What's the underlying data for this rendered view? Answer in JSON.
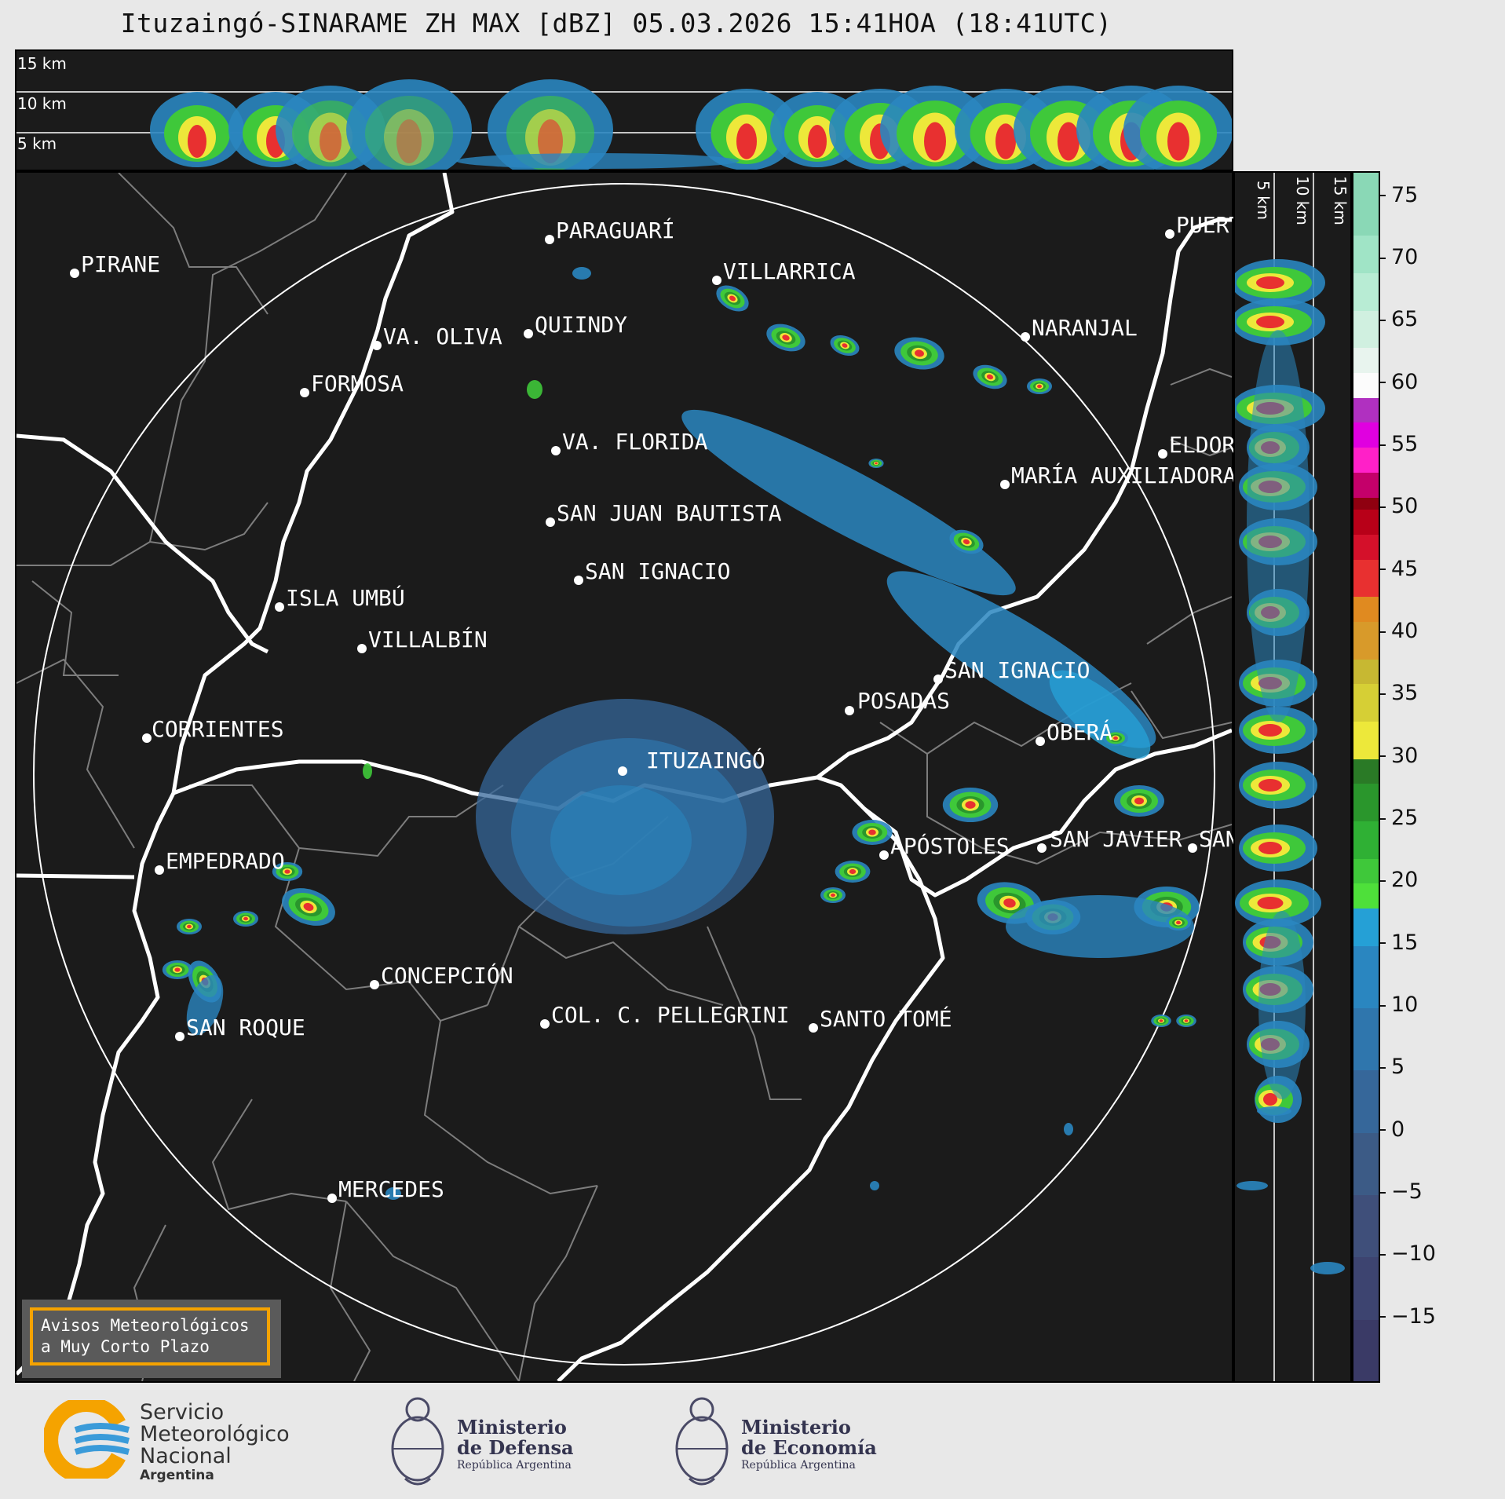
{
  "title": "Ituzaingó-SINARAME ZH MAX [dBZ] 05.03.2026 15:41HOA (18:41UTC)",
  "top_panel": {
    "height_labels": [
      "15 km",
      "10 km",
      "5 km"
    ]
  },
  "side_panel": {
    "height_labels": [
      "5 km",
      "10 km",
      "15 km"
    ]
  },
  "radar_site": "ITUZAINGÓ",
  "cities": [
    {
      "name": "PARAGUARÍ"
    },
    {
      "name": "PIRANE"
    },
    {
      "name": "VILLARRICA"
    },
    {
      "name": "PUERTO"
    },
    {
      "name": "QUIINDY"
    },
    {
      "name": "NARANJAL"
    },
    {
      "name": "VA. OLIVA"
    },
    {
      "name": "FORMOSA"
    },
    {
      "name": "VA. FLORIDA"
    },
    {
      "name": "ELDORADO"
    },
    {
      "name": "MARÍA AUXILIADORA"
    },
    {
      "name": "SAN JUAN BAUTISTA"
    },
    {
      "name": "SAN IGNACIO"
    },
    {
      "name": "ISLA UMBÚ"
    },
    {
      "name": "VILLALBÍN"
    },
    {
      "name": "SAN IGNACIO"
    },
    {
      "name": "POSADAS"
    },
    {
      "name": "CORRIENTES"
    },
    {
      "name": "ITUZAINGÓ"
    },
    {
      "name": "OBERÁ"
    },
    {
      "name": "EMPEDRADO"
    },
    {
      "name": "APÓSTOLES"
    },
    {
      "name": "SAN JAVIER"
    },
    {
      "name": "SAN"
    },
    {
      "name": "CONCEPCIÓN"
    },
    {
      "name": "COL. C. PELLEGRINI"
    },
    {
      "name": "SANTO TOMÉ"
    },
    {
      "name": "SAN ROQUE"
    },
    {
      "name": "MERCEDES"
    }
  ],
  "colorbar": {
    "label": "dBZ",
    "ticks": [
      "75",
      "70",
      "65",
      "60",
      "55",
      "50",
      "45",
      "40",
      "35",
      "30",
      "25",
      "20",
      "15",
      "10",
      "5",
      "0",
      "−5",
      "−10",
      "−15"
    ],
    "range": [
      -20,
      77
    ]
  },
  "warning_button": {
    "line1": "Avisos Meteorológicos",
    "line2": "a Muy Corto Plazo"
  },
  "logos": {
    "smn": {
      "line1": "Servicio",
      "line2": "Meteorológico",
      "line3": "Nacional",
      "line4": "Argentina"
    },
    "defensa": {
      "line1": "Ministerio",
      "line2": "de Defensa",
      "line3": "República Argentina"
    },
    "economia": {
      "line1": "Ministerio",
      "line2": "de Economía",
      "line3": "República Argentina"
    }
  },
  "colors": {
    "background": "#1b1b1b",
    "borders": "#ffffff",
    "province_lines": "#808080",
    "accent": "#f5a300"
  }
}
